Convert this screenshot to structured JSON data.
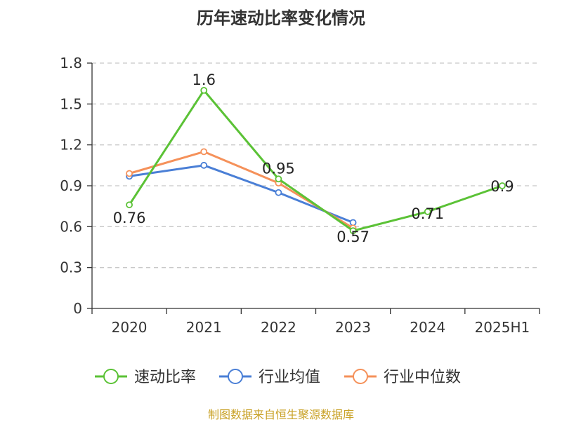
{
  "chart_data": {
    "type": "line",
    "title": "历年速动比率变化情况",
    "categories": [
      "2020",
      "2021",
      "2022",
      "2023",
      "2024",
      "2025H1"
    ],
    "y_ticks": [
      "0",
      "0.3",
      "0.6",
      "0.9",
      "1.2",
      "1.5",
      "1.8"
    ],
    "ylim": [
      0,
      1.8
    ],
    "grid": true,
    "legend_position": "bottom",
    "series": [
      {
        "name": "速动比率",
        "color": "#5bc236",
        "values": [
          0.76,
          1.6,
          0.95,
          0.57,
          0.71,
          0.9
        ],
        "data_labels": [
          "0.76",
          "1.6",
          "0.95",
          "0.57",
          "0.71",
          "0.9"
        ]
      },
      {
        "name": "行业均值",
        "color": "#4a7fd6",
        "values": [
          0.97,
          1.05,
          0.85,
          0.63,
          null,
          null
        ]
      },
      {
        "name": "行业中位数",
        "color": "#f5915a",
        "values": [
          0.99,
          1.15,
          0.92,
          0.59,
          null,
          null
        ]
      }
    ]
  },
  "source": "制图数据来自恒生聚源数据库"
}
